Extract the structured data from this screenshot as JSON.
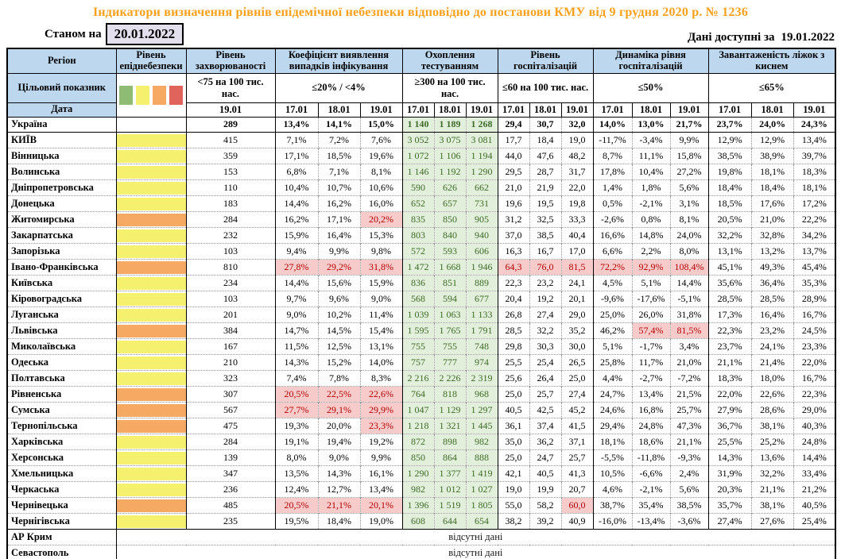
{
  "title": "Індикатори визначення рівнів епідемічної небезпеки відповідно до постанови КМУ від 9 грудня 2020 р. № 1236",
  "as_of_label": "Станом на",
  "as_of_date": "20.01.2022",
  "available_label": "Дані доступні за",
  "available_date": "19.01.2022",
  "no_data_text": "відсутні дані",
  "colors": {
    "title": "#F9A11C",
    "header_bg": "#BDD7EE",
    "date_box_bg": "#E4DFEC",
    "level": {
      "yellow": "#F5F06E",
      "orange": "#F5A962"
    },
    "testing_bg": "#E2EFDA",
    "testing_text": "#3E6B28",
    "alert_bg": "#F8CBCB",
    "alert_text": "#B00000"
  },
  "header": {
    "region": "Регіон",
    "target_row_label": "Цільовий показник",
    "date_row_label": "Дата",
    "legend_colors": [
      "#8FBC74",
      "#F5F06E",
      "#F5A962",
      "#E0645C"
    ],
    "groups": [
      {
        "id": "level",
        "label": "Рівень епіднебезпеки"
      },
      {
        "id": "incidence",
        "label": "Рівень захворюваності",
        "target": "<75 на 100 тис. нас.",
        "dates": [
          "19.01"
        ]
      },
      {
        "id": "detection",
        "label": "Коефіцієнт виявлення випадків інфікування",
        "target": "≤20% / <4%",
        "dates": [
          "17.01",
          "18.01",
          "19.01"
        ]
      },
      {
        "id": "testing",
        "label": "Охоплення тестуванням",
        "target": "≥300 на 100 тис. нас.",
        "dates": [
          "17.01",
          "18.01",
          "19.01"
        ]
      },
      {
        "id": "hospitalization",
        "label": "Рівень госпіталізацій",
        "target": "≤60 на 100 тис. нас.",
        "dates": [
          "17.01",
          "18.01",
          "19.01"
        ]
      },
      {
        "id": "dynamics",
        "label": "Динаміка рівня госпіталізацій",
        "target": "≤50%",
        "dates": [
          "17.01",
          "18.01",
          "19.01"
        ]
      },
      {
        "id": "beds",
        "label": "Завантаженість ліжок з киснем",
        "target": "≤65%",
        "dates": [
          "17.01",
          "18.01",
          "19.01"
        ]
      }
    ]
  },
  "rows": [
    {
      "region": "Україна",
      "bold": true,
      "level": null,
      "inc": "289",
      "det": [
        "13,4%",
        "14,1%",
        "15,0%"
      ],
      "test": [
        "1 140",
        "1 189",
        "1 268"
      ],
      "hosp": [
        "29,4",
        "30,7",
        "32,0"
      ],
      "dyn": [
        "14,0%",
        "13,0%",
        "21,7%"
      ],
      "beds": [
        "23,7%",
        "24,0%",
        "24,3%"
      ]
    },
    {
      "region": "КИЇВ",
      "level": "yellow",
      "inc": "415",
      "det": [
        "7,1%",
        "7,2%",
        "7,6%"
      ],
      "test": [
        "3 052",
        "3 075",
        "3 081"
      ],
      "hosp": [
        "17,7",
        "18,4",
        "19,0"
      ],
      "dyn": [
        "-11,7%",
        "-3,4%",
        "9,9%"
      ],
      "beds": [
        "12,9%",
        "12,9%",
        "13,4%"
      ]
    },
    {
      "region": "Вінницька",
      "level": "yellow",
      "inc": "359",
      "det": [
        "17,1%",
        "18,5%",
        "19,6%"
      ],
      "test": [
        "1 072",
        "1 106",
        "1 194"
      ],
      "hosp": [
        "44,0",
        "47,6",
        "48,2"
      ],
      "dyn": [
        "8,7%",
        "11,1%",
        "15,8%"
      ],
      "beds": [
        "38,5%",
        "38,9%",
        "39,7%"
      ]
    },
    {
      "region": "Волинська",
      "level": "yellow",
      "inc": "153",
      "det": [
        "6,8%",
        "7,1%",
        "8,1%"
      ],
      "test": [
        "1 146",
        "1 192",
        "1 290"
      ],
      "hosp": [
        "29,5",
        "28,7",
        "31,7"
      ],
      "dyn": [
        "17,8%",
        "10,4%",
        "27,2%"
      ],
      "beds": [
        "19,8%",
        "18,1%",
        "18,3%"
      ]
    },
    {
      "region": "Дніпропетровська",
      "level": "yellow",
      "inc": "110",
      "det": [
        "10,4%",
        "10,7%",
        "10,6%"
      ],
      "test": [
        "590",
        "626",
        "662"
      ],
      "hosp": [
        "21,0",
        "21,9",
        "22,0"
      ],
      "dyn": [
        "1,4%",
        "1,8%",
        "5,6%"
      ],
      "beds": [
        "18,4%",
        "18,4%",
        "18,1%"
      ]
    },
    {
      "region": "Донецька",
      "level": "yellow",
      "inc": "183",
      "det": [
        "14,4%",
        "16,2%",
        "16,0%"
      ],
      "test": [
        "652",
        "657",
        "731"
      ],
      "hosp": [
        "19,6",
        "19,5",
        "19,8"
      ],
      "dyn": [
        "0,5%",
        "-2,1%",
        "3,1%"
      ],
      "beds": [
        "18,5%",
        "17,6%",
        "17,2%"
      ]
    },
    {
      "region": "Житомирська",
      "level": "orange",
      "inc": "284",
      "det": [
        "16,2%",
        "17,1%",
        "20,2%"
      ],
      "det_hl": [
        false,
        false,
        true
      ],
      "test": [
        "835",
        "850",
        "905"
      ],
      "hosp": [
        "31,2",
        "32,5",
        "33,3"
      ],
      "dyn": [
        "-2,6%",
        "0,8%",
        "8,1%"
      ],
      "beds": [
        "20,5%",
        "21,0%",
        "22,2%"
      ]
    },
    {
      "region": "Закарпатська",
      "level": "yellow",
      "inc": "232",
      "det": [
        "15,9%",
        "16,4%",
        "15,3%"
      ],
      "test": [
        "803",
        "840",
        "940"
      ],
      "hosp": [
        "37,0",
        "38,5",
        "40,4"
      ],
      "dyn": [
        "16,6%",
        "14,8%",
        "24,0%"
      ],
      "beds": [
        "32,2%",
        "32,8%",
        "34,2%"
      ]
    },
    {
      "region": "Запорізька",
      "level": "yellow",
      "inc": "103",
      "det": [
        "9,4%",
        "9,9%",
        "9,8%"
      ],
      "test": [
        "572",
        "593",
        "606"
      ],
      "hosp": [
        "16,3",
        "16,7",
        "17,0"
      ],
      "dyn": [
        "6,6%",
        "2,2%",
        "8,0%"
      ],
      "beds": [
        "13,1%",
        "13,2%",
        "13,7%"
      ]
    },
    {
      "region": "Івано-Франківська",
      "level": "orange",
      "inc": "810",
      "det": [
        "27,8%",
        "29,2%",
        "31,8%"
      ],
      "det_hl": [
        true,
        true,
        true
      ],
      "test": [
        "1 472",
        "1 668",
        "1 946"
      ],
      "hosp": [
        "64,3",
        "76,0",
        "81,5"
      ],
      "hosp_hl": [
        true,
        true,
        true
      ],
      "dyn": [
        "72,2%",
        "92,9%",
        "108,4%"
      ],
      "dyn_hl": [
        true,
        true,
        true
      ],
      "beds": [
        "45,1%",
        "49,3%",
        "45,4%"
      ]
    },
    {
      "region": "Київська",
      "level": "yellow",
      "inc": "234",
      "det": [
        "14,4%",
        "15,6%",
        "15,9%"
      ],
      "test": [
        "836",
        "851",
        "889"
      ],
      "hosp": [
        "22,3",
        "23,2",
        "24,1"
      ],
      "dyn": [
        "4,5%",
        "5,1%",
        "14,4%"
      ],
      "beds": [
        "35,6%",
        "36,4%",
        "35,3%"
      ]
    },
    {
      "region": "Кіровоградська",
      "level": "yellow",
      "inc": "103",
      "det": [
        "9,7%",
        "9,6%",
        "9,0%"
      ],
      "test": [
        "568",
        "594",
        "677"
      ],
      "hosp": [
        "20,4",
        "19,2",
        "20,1"
      ],
      "dyn": [
        "-9,6%",
        "-17,6%",
        "-5,1%"
      ],
      "beds": [
        "28,5%",
        "28,5%",
        "28,9%"
      ]
    },
    {
      "region": "Луганська",
      "level": "yellow",
      "inc": "201",
      "det": [
        "9,0%",
        "10,2%",
        "11,4%"
      ],
      "test": [
        "1 039",
        "1 063",
        "1 133"
      ],
      "hosp": [
        "26,8",
        "27,4",
        "29,0"
      ],
      "dyn": [
        "25,0%",
        "26,0%",
        "31,8%"
      ],
      "beds": [
        "17,3%",
        "16,4%",
        "16,7%"
      ]
    },
    {
      "region": "Львівська",
      "level": "orange",
      "inc": "384",
      "det": [
        "14,7%",
        "14,5%",
        "15,4%"
      ],
      "test": [
        "1 595",
        "1 765",
        "1 791"
      ],
      "hosp": [
        "28,5",
        "32,2",
        "35,2"
      ],
      "dyn": [
        "46,2%",
        "57,4%",
        "81,5%"
      ],
      "dyn_hl": [
        false,
        true,
        true
      ],
      "beds": [
        "22,3%",
        "23,2%",
        "24,5%"
      ]
    },
    {
      "region": "Миколаївська",
      "level": "yellow",
      "inc": "167",
      "det": [
        "11,5%",
        "12,5%",
        "13,1%"
      ],
      "test": [
        "755",
        "755",
        "748"
      ],
      "hosp": [
        "29,8",
        "30,3",
        "30,0"
      ],
      "dyn": [
        "5,1%",
        "-1,7%",
        "3,4%"
      ],
      "beds": [
        "23,7%",
        "24,1%",
        "23,3%"
      ]
    },
    {
      "region": "Одеська",
      "level": "yellow",
      "inc": "210",
      "det": [
        "14,3%",
        "15,2%",
        "14,0%"
      ],
      "test": [
        "757",
        "777",
        "974"
      ],
      "hosp": [
        "25,5",
        "25,4",
        "26,5"
      ],
      "dyn": [
        "25,8%",
        "11,7%",
        "21,0%"
      ],
      "beds": [
        "21,1%",
        "21,4%",
        "22,0%"
      ]
    },
    {
      "region": "Полтавська",
      "level": "yellow",
      "inc": "323",
      "det": [
        "7,4%",
        "7,8%",
        "8,3%"
      ],
      "test": [
        "2 216",
        "2 226",
        "2 319"
      ],
      "hosp": [
        "25,6",
        "26,4",
        "25,0"
      ],
      "dyn": [
        "4,4%",
        "-2,7%",
        "-7,2%"
      ],
      "beds": [
        "18,3%",
        "18,0%",
        "16,7%"
      ]
    },
    {
      "region": "Рівненська",
      "level": "orange",
      "inc": "307",
      "det": [
        "20,5%",
        "22,5%",
        "22,6%"
      ],
      "det_hl": [
        true,
        true,
        true
      ],
      "test": [
        "764",
        "818",
        "968"
      ],
      "hosp": [
        "25,0",
        "25,7",
        "27,4"
      ],
      "dyn": [
        "24,7%",
        "13,4%",
        "21,5%"
      ],
      "beds": [
        "22,0%",
        "22,6%",
        "22,3%"
      ]
    },
    {
      "region": "Сумська",
      "level": "orange",
      "inc": "567",
      "det": [
        "27,7%",
        "29,1%",
        "29,9%"
      ],
      "det_hl": [
        true,
        true,
        true
      ],
      "test": [
        "1 047",
        "1 129",
        "1 297"
      ],
      "hosp": [
        "40,5",
        "42,5",
        "45,2"
      ],
      "dyn": [
        "24,6%",
        "16,8%",
        "25,7%"
      ],
      "beds": [
        "27,9%",
        "28,6%",
        "29,0%"
      ]
    },
    {
      "region": "Тернопільська",
      "level": "orange",
      "inc": "475",
      "det": [
        "19,3%",
        "20,0%",
        "23,3%"
      ],
      "det_hl": [
        false,
        false,
        true
      ],
      "test": [
        "1 218",
        "1 321",
        "1 445"
      ],
      "hosp": [
        "36,1",
        "37,4",
        "41,5"
      ],
      "dyn": [
        "29,4%",
        "24,8%",
        "47,3%"
      ],
      "beds": [
        "36,7%",
        "38,1%",
        "40,3%"
      ]
    },
    {
      "region": "Харківська",
      "level": "yellow",
      "inc": "284",
      "det": [
        "19,1%",
        "19,4%",
        "19,2%"
      ],
      "test": [
        "872",
        "898",
        "982"
      ],
      "hosp": [
        "35,0",
        "36,2",
        "37,1"
      ],
      "dyn": [
        "18,1%",
        "18,6%",
        "21,1%"
      ],
      "beds": [
        "25,5%",
        "25,2%",
        "24,8%"
      ]
    },
    {
      "region": "Херсонська",
      "level": "yellow",
      "inc": "139",
      "det": [
        "8,0%",
        "9,0%",
        "9,9%"
      ],
      "test": [
        "850",
        "864",
        "888"
      ],
      "hosp": [
        "25,0",
        "24,7",
        "25,7"
      ],
      "dyn": [
        "-5,5%",
        "-11,8%",
        "-9,3%"
      ],
      "beds": [
        "14,3%",
        "13,6%",
        "14,4%"
      ]
    },
    {
      "region": "Хмельницька",
      "level": "yellow",
      "inc": "347",
      "det": [
        "13,5%",
        "14,3%",
        "16,1%"
      ],
      "test": [
        "1 290",
        "1 377",
        "1 419"
      ],
      "hosp": [
        "42,1",
        "40,5",
        "41,3"
      ],
      "dyn": [
        "10,5%",
        "-6,6%",
        "2,4%"
      ],
      "beds": [
        "31,9%",
        "32,2%",
        "33,4%"
      ]
    },
    {
      "region": "Черкаська",
      "level": "yellow",
      "inc": "236",
      "det": [
        "12,4%",
        "12,7%",
        "13,4%"
      ],
      "test": [
        "982",
        "1 012",
        "1 027"
      ],
      "hosp": [
        "19,0",
        "19,9",
        "20,7"
      ],
      "dyn": [
        "4,6%",
        "-2,1%",
        "5,6%"
      ],
      "beds": [
        "20,3%",
        "21,1%",
        "21,2%"
      ]
    },
    {
      "region": "Чернівецька",
      "level": "orange",
      "inc": "485",
      "det": [
        "20,5%",
        "21,1%",
        "20,1%"
      ],
      "det_hl": [
        true,
        true,
        true
      ],
      "test": [
        "1 396",
        "1 519",
        "1 805"
      ],
      "hosp": [
        "55,0",
        "58,2",
        "60,0"
      ],
      "hosp_hl": [
        false,
        false,
        true
      ],
      "dyn": [
        "38,7%",
        "35,4%",
        "38,5%"
      ],
      "beds": [
        "35,7%",
        "38,1%",
        "40,5%"
      ]
    },
    {
      "region": "Чернігівська",
      "level": "yellow",
      "inc": "235",
      "det": [
        "19,5%",
        "18,4%",
        "19,0%"
      ],
      "test": [
        "608",
        "644",
        "654"
      ],
      "hosp": [
        "38,2",
        "39,2",
        "40,9"
      ],
      "dyn": [
        "-16,0%",
        "-13,4%",
        "-3,6%"
      ],
      "beds": [
        "27,4%",
        "27,6%",
        "25,4%"
      ]
    },
    {
      "region": "АР Крим",
      "no_data": true
    },
    {
      "region": "Севастополь",
      "no_data": true
    }
  ]
}
